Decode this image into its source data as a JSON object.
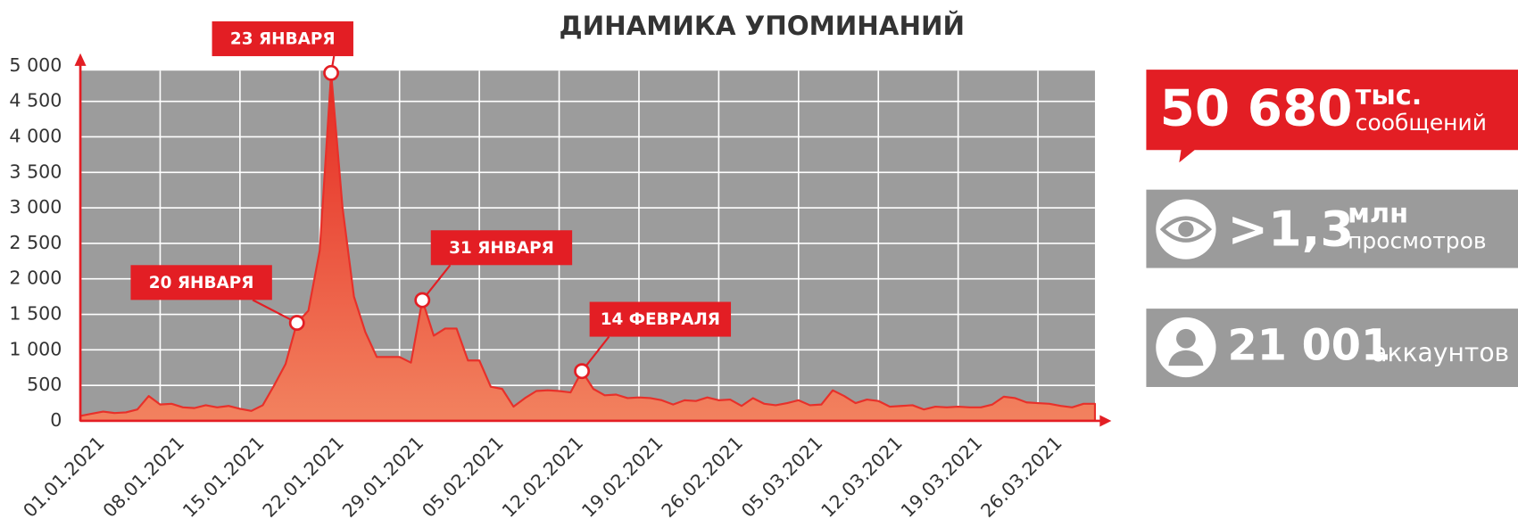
{
  "chart_data": {
    "type": "area",
    "title": "ДИНАМИКА УПОМИНАНИЙ",
    "categories": [
      "01.01.2021",
      null,
      null,
      null,
      null,
      null,
      null,
      "08.01.2021",
      null,
      null,
      null,
      null,
      null,
      null,
      "15.01.2021",
      null,
      null,
      null,
      null,
      null,
      null,
      "22.01.2021",
      null,
      null,
      null,
      null,
      null,
      null,
      "29.01.2021",
      null,
      null,
      null,
      null,
      null,
      null,
      "05.02.2021",
      null,
      null,
      null,
      null,
      null,
      null,
      "12.02.2021",
      null,
      null,
      null,
      null,
      null,
      null,
      "19.02.2021",
      null,
      null,
      null,
      null,
      null,
      null,
      "26.02.2021",
      null,
      null,
      null,
      null,
      null,
      null,
      "05.03.2021",
      null,
      null,
      null,
      null,
      null,
      null,
      "12.03.2021",
      null,
      null,
      null,
      null,
      null,
      null,
      "19.03.2021",
      null,
      null,
      null,
      null,
      null,
      null,
      "26.03.2021",
      null,
      null,
      null,
      null,
      null
    ],
    "values": [
      70,
      100,
      130,
      110,
      120,
      160,
      350,
      230,
      240,
      190,
      180,
      220,
      190,
      210,
      170,
      140,
      220,
      500,
      800,
      1380,
      1550,
      2400,
      4900,
      3000,
      1750,
      1250,
      900,
      900,
      900,
      820,
      1700,
      1200,
      1300,
      1300,
      850,
      850,
      480,
      450,
      200,
      320,
      420,
      430,
      420,
      400,
      700,
      450,
      360,
      370,
      320,
      330,
      320,
      290,
      230,
      290,
      280,
      330,
      290,
      300,
      210,
      320,
      240,
      220,
      250,
      290,
      220,
      230,
      430,
      350,
      250,
      300,
      280,
      200,
      210,
      220,
      160,
      200,
      190,
      200,
      190,
      190,
      230,
      340,
      320,
      260,
      250,
      240,
      210,
      190,
      240,
      240
    ],
    "color": "#e8302a",
    "ylim": [
      0,
      5000
    ],
    "yticks": [
      0,
      500,
      {
        "value": 1000,
        "label": "1 000"
      },
      {
        "value": 1500,
        "label": "1 500"
      },
      {
        "value": 2000,
        "label": "2 000"
      },
      {
        "value": 2500,
        "label": "2 500"
      },
      {
        "value": 3000,
        "label": "3 000"
      },
      {
        "value": 3500,
        "label": "3 500"
      },
      {
        "value": 4000,
        "label": "4 000"
      },
      {
        "value": 4500,
        "label": "4 500"
      },
      {
        "value": 5000,
        "label": "5 000"
      }
    ],
    "grid": true,
    "annotations": [
      "20 ЯНВАРЯ",
      "23 ЯНВАРЯ",
      "31 ЯНВАРЯ",
      "14 ФЕВРАЛЯ"
    ]
  },
  "stats": [
    {
      "number": "50 680",
      "unit": "тыс.",
      "caption": "сообщений"
    },
    {
      "number": ">1,3",
      "unit": "млн",
      "caption": "просмотров"
    },
    {
      "number": "21 001",
      "caption": "аккаунтов"
    }
  ]
}
